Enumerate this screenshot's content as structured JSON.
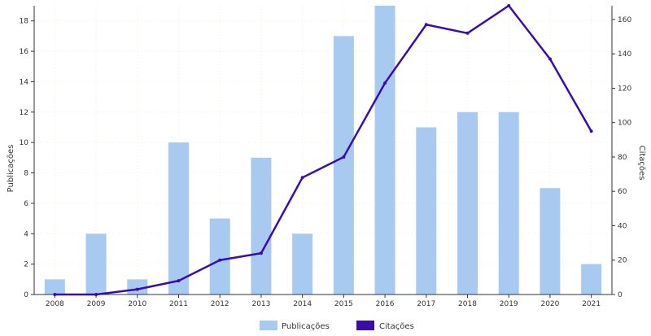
{
  "chart_data": {
    "type": "bar",
    "title": "",
    "categories": [
      "2008",
      "2009",
      "2010",
      "2011",
      "2012",
      "2013",
      "2014",
      "2015",
      "2016",
      "2017",
      "2018",
      "2019",
      "2020",
      "2021"
    ],
    "series": [
      {
        "name": "Publicações",
        "type": "bar",
        "axis": "left",
        "color": "#a8caf0",
        "values": [
          1,
          4,
          1,
          10,
          5,
          9,
          4,
          17,
          19,
          11,
          12,
          12,
          7,
          2
        ]
      },
      {
        "name": "Citações",
        "type": "line",
        "axis": "right",
        "color": "#3a0ca8",
        "values": [
          0,
          0,
          3,
          8,
          20,
          24,
          68,
          80,
          123,
          157,
          152,
          168,
          137,
          95
        ]
      }
    ],
    "ylabel_left": "Publicações",
    "ylabel_right": "Citações",
    "ylim_left": [
      0,
      19
    ],
    "ylim_right": [
      0,
      168
    ],
    "yticks_left": [
      0,
      2,
      4,
      6,
      8,
      10,
      12,
      14,
      16,
      18
    ],
    "yticks_right": [
      0,
      20,
      40,
      60,
      80,
      100,
      120,
      140,
      160
    ],
    "grid": true,
    "legend_position": "bottom-center"
  }
}
